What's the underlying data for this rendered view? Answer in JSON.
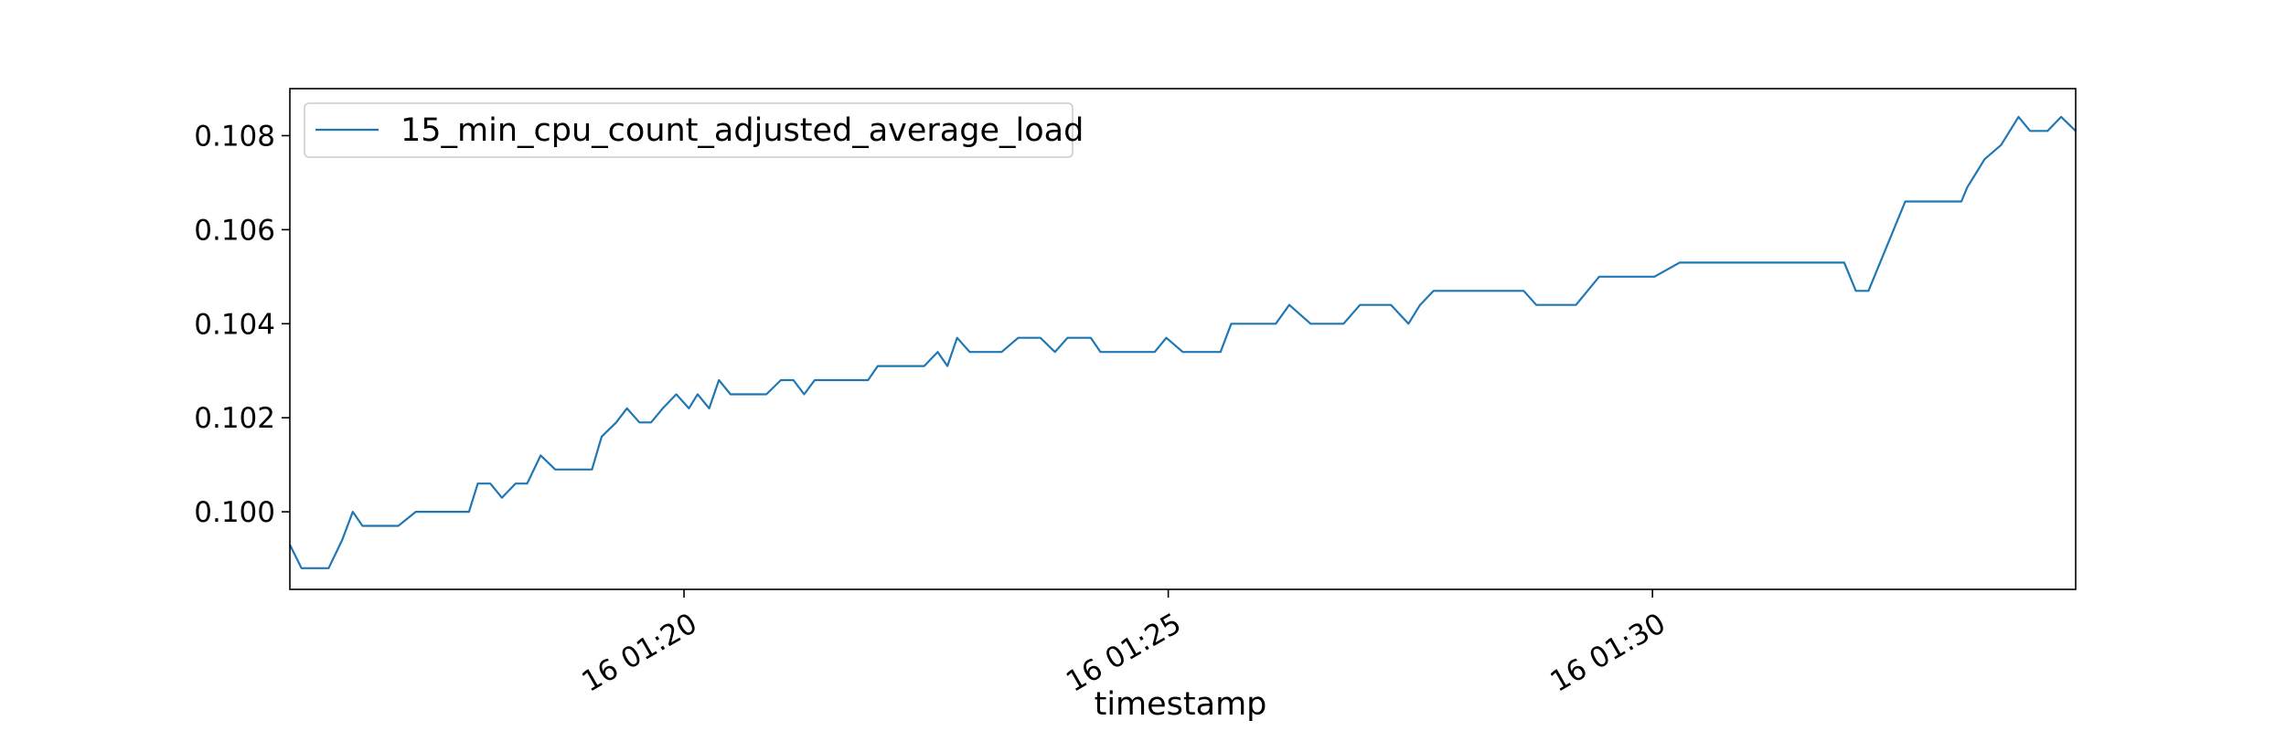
{
  "chart_data": {
    "type": "line",
    "title": "",
    "xlabel": "timestamp",
    "ylabel": "",
    "x_tick_labels": [
      "16 01:20",
      "16 01:25",
      "16 01:30"
    ],
    "y_tick_labels": [
      "0.100",
      "0.102",
      "0.104",
      "0.106",
      "0.108"
    ],
    "y_ticks": [
      0.1,
      0.102,
      0.104,
      0.106,
      0.108
    ],
    "x_tick_minutes": [
      20,
      25,
      30
    ],
    "xlim_minutes": [
      15.93,
      34.37
    ],
    "ylim": [
      0.09835,
      0.109
    ],
    "grid": false,
    "legend": {
      "placement": "top-left",
      "entries": [
        "15_min_cpu_count_adjusted_average_load"
      ]
    },
    "colors": {
      "line": "#1f77b4",
      "axes": "#000000",
      "legend_border": "#cccccc"
    },
    "series": [
      {
        "name": "15_min_cpu_count_adjusted_average_load",
        "x_minutes": [
          15.93,
          16.05,
          16.23,
          16.33,
          16.47,
          16.58,
          16.68,
          16.8,
          16.93,
          17.05,
          17.23,
          17.36,
          17.5,
          17.63,
          17.78,
          17.87,
          18.0,
          18.12,
          18.26,
          18.38,
          18.52,
          18.67,
          18.76,
          18.93,
          19.05,
          19.15,
          19.3,
          19.41,
          19.54,
          19.66,
          19.78,
          19.92,
          20.05,
          20.14,
          20.26,
          20.36,
          20.48,
          20.58,
          20.74,
          20.85,
          21.0,
          21.13,
          21.24,
          21.35,
          21.48,
          21.66,
          21.79,
          21.9,
          22.0,
          22.23,
          22.37,
          22.48,
          22.62,
          22.72,
          22.82,
          22.95,
          23.17,
          23.28,
          23.45,
          23.56,
          23.68,
          23.83,
          23.96,
          24.08,
          24.2,
          24.3,
          24.41,
          24.54,
          24.66,
          24.86,
          24.98,
          25.15,
          25.35,
          25.54,
          25.65,
          25.78,
          25.96,
          26.11,
          26.25,
          26.47,
          26.69,
          26.81,
          26.98,
          27.08,
          27.3,
          27.48,
          27.6,
          27.74,
          27.89,
          28.05,
          28.34,
          28.67,
          28.8,
          28.98,
          29.1,
          29.21,
          29.45,
          29.61,
          29.8,
          30.02,
          30.28,
          30.46,
          30.68,
          31.2,
          31.6,
          31.98,
          32.1,
          32.23,
          32.61,
          33.19,
          33.25,
          33.43,
          33.6,
          33.78,
          33.9,
          34.08,
          34.22,
          34.37
        ],
        "values": [
          0.0993,
          0.0988,
          0.0988,
          0.0988,
          0.0994,
          0.1,
          0.0997,
          0.0997,
          0.0997,
          0.0997,
          0.1,
          0.1,
          0.1,
          0.1,
          0.1,
          0.1006,
          0.1006,
          0.1003,
          0.1006,
          0.1006,
          0.1012,
          0.1009,
          0.1009,
          0.1009,
          0.1009,
          0.1016,
          0.1019,
          0.1022,
          0.1019,
          0.1019,
          0.1022,
          0.1025,
          0.1022,
          0.1025,
          0.1022,
          0.1028,
          0.1025,
          0.1025,
          0.1025,
          0.1025,
          0.1028,
          0.1028,
          0.1025,
          0.1028,
          0.1028,
          0.1028,
          0.1028,
          0.1028,
          0.1031,
          0.1031,
          0.1031,
          0.1031,
          0.1034,
          0.1031,
          0.1037,
          0.1034,
          0.1034,
          0.1034,
          0.1037,
          0.1037,
          0.1037,
          0.1034,
          0.1037,
          0.1037,
          0.1037,
          0.1034,
          0.1034,
          0.1034,
          0.1034,
          0.1034,
          0.1037,
          0.1034,
          0.1034,
          0.1034,
          0.104,
          0.104,
          0.104,
          0.104,
          0.1044,
          0.104,
          0.104,
          0.104,
          0.1044,
          0.1044,
          0.1044,
          0.104,
          0.1044,
          0.1047,
          0.1047,
          0.1047,
          0.1047,
          0.1047,
          0.1044,
          0.1044,
          0.1044,
          0.1044,
          0.105,
          0.105,
          0.105,
          0.105,
          0.1053,
          0.1053,
          0.1053,
          0.1053,
          0.1053,
          0.1053,
          0.1047,
          0.1047,
          0.1066,
          0.1066,
          0.1069,
          0.1075,
          0.1078,
          0.1084,
          0.1081,
          0.1081,
          0.1084,
          0.1081
        ]
      }
    ]
  }
}
